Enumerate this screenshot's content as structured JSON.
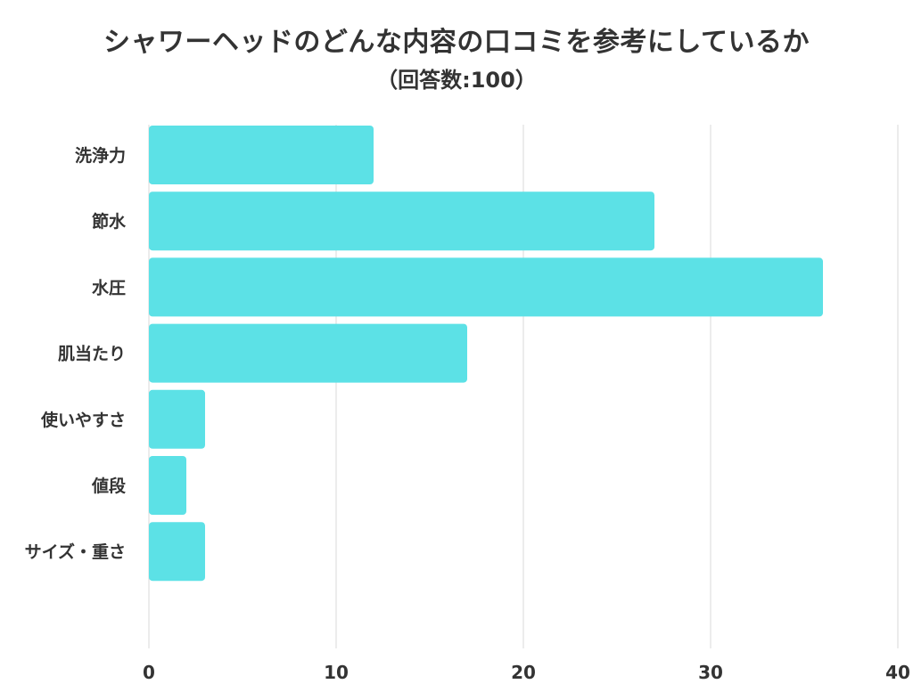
{
  "chart_data": {
    "type": "bar",
    "orientation": "horizontal",
    "title": "シャワーヘッドのどんな内容の口コミを参考にしているか",
    "subtitle": "（回答数:100）",
    "categories": [
      "洗浄力",
      "節水",
      "水圧",
      "肌当たり",
      "使いやすさ",
      "値段",
      "サイズ・重さ"
    ],
    "values": [
      12,
      27,
      36,
      17,
      3,
      2,
      3
    ],
    "xlim": [
      0,
      40
    ],
    "xticks": [
      "0",
      "10",
      "20",
      "30",
      "40"
    ],
    "grid": true,
    "bar_color": "#5ce1e6"
  }
}
